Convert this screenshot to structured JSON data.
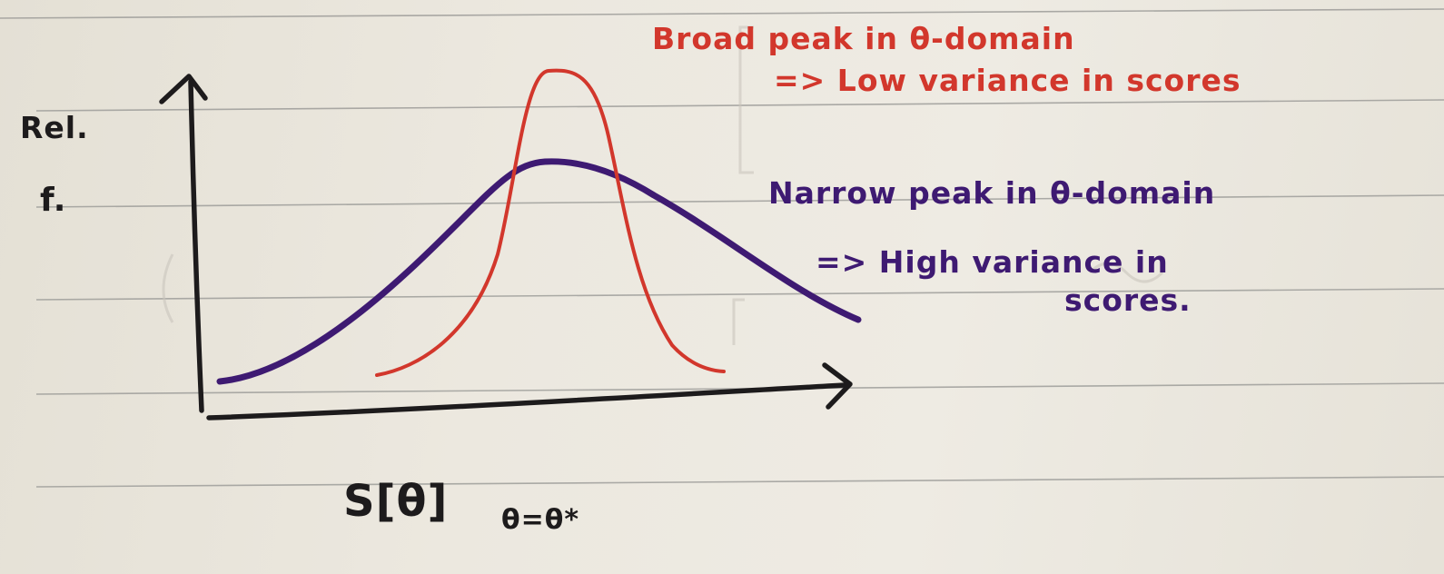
{
  "diagram": {
    "axes": {
      "y_label_line1": "Rel.",
      "y_label_line2": "f.",
      "x_label_main": "S[θ]",
      "x_label_subscript": "θ=θ*"
    },
    "annotations": {
      "red_line1": "Broad peak in θ-domain",
      "red_line2": "=> Low variance in scores",
      "purple_line1": "Narrow peak in θ-domain",
      "purple_line2": "=> High variance in",
      "purple_line3": "scores."
    },
    "colors": {
      "paper": "#ece8df",
      "rule_lines": "#9e9d9a",
      "axis_ink": "#1d1b1c",
      "red_ink": "#d2372c",
      "purple_ink": "#3e1a72"
    }
  }
}
